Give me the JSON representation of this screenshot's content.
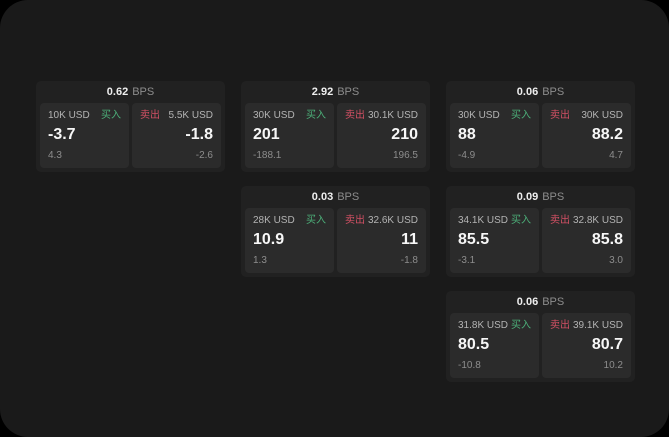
{
  "theme": {
    "page_background": "#000000",
    "window_background": "#1a1a1a",
    "card_background": "#212121",
    "panel_background": "#2b2b2b",
    "buy_color": "#4caf79",
    "sell_color": "#d25064",
    "primary_text": "#f7f7f7",
    "muted_text": "#8d8d8d",
    "label_text": "#b3b3b3"
  },
  "labels": {
    "bps_unit": "BPS",
    "buy": "买入",
    "sell": "卖出"
  },
  "cards": [
    {
      "bps": "0.62",
      "buy": {
        "amount": "10K USD",
        "value": "-3.7",
        "delta": "4.3"
      },
      "sell": {
        "amount": "5.5K USD",
        "value": "-1.8",
        "delta": "-2.6"
      }
    },
    {
      "bps": "2.92",
      "buy": {
        "amount": "30K USD",
        "value": "201",
        "delta": "-188.1"
      },
      "sell": {
        "amount": "30.1K USD",
        "value": "210",
        "delta": "196.5"
      }
    },
    {
      "bps": "0.06",
      "buy": {
        "amount": "30K USD",
        "value": "88",
        "delta": "-4.9"
      },
      "sell": {
        "amount": "30K USD",
        "value": "88.2",
        "delta": "4.7"
      }
    },
    {
      "bps": "0.03",
      "buy": {
        "amount": "28K USD",
        "value": "10.9",
        "delta": "1.3"
      },
      "sell": {
        "amount": "32.6K USD",
        "value": "11",
        "delta": "-1.8"
      }
    },
    {
      "bps": "0.09",
      "buy": {
        "amount": "34.1K USD",
        "value": "85.5",
        "delta": "-3.1"
      },
      "sell": {
        "amount": "32.8K USD",
        "value": "85.8",
        "delta": "3.0"
      }
    },
    {
      "bps": "0.06",
      "buy": {
        "amount": "31.8K USD",
        "value": "80.5",
        "delta": "-10.8"
      },
      "sell": {
        "amount": "39.1K USD",
        "value": "80.7",
        "delta": "10.2"
      }
    }
  ]
}
